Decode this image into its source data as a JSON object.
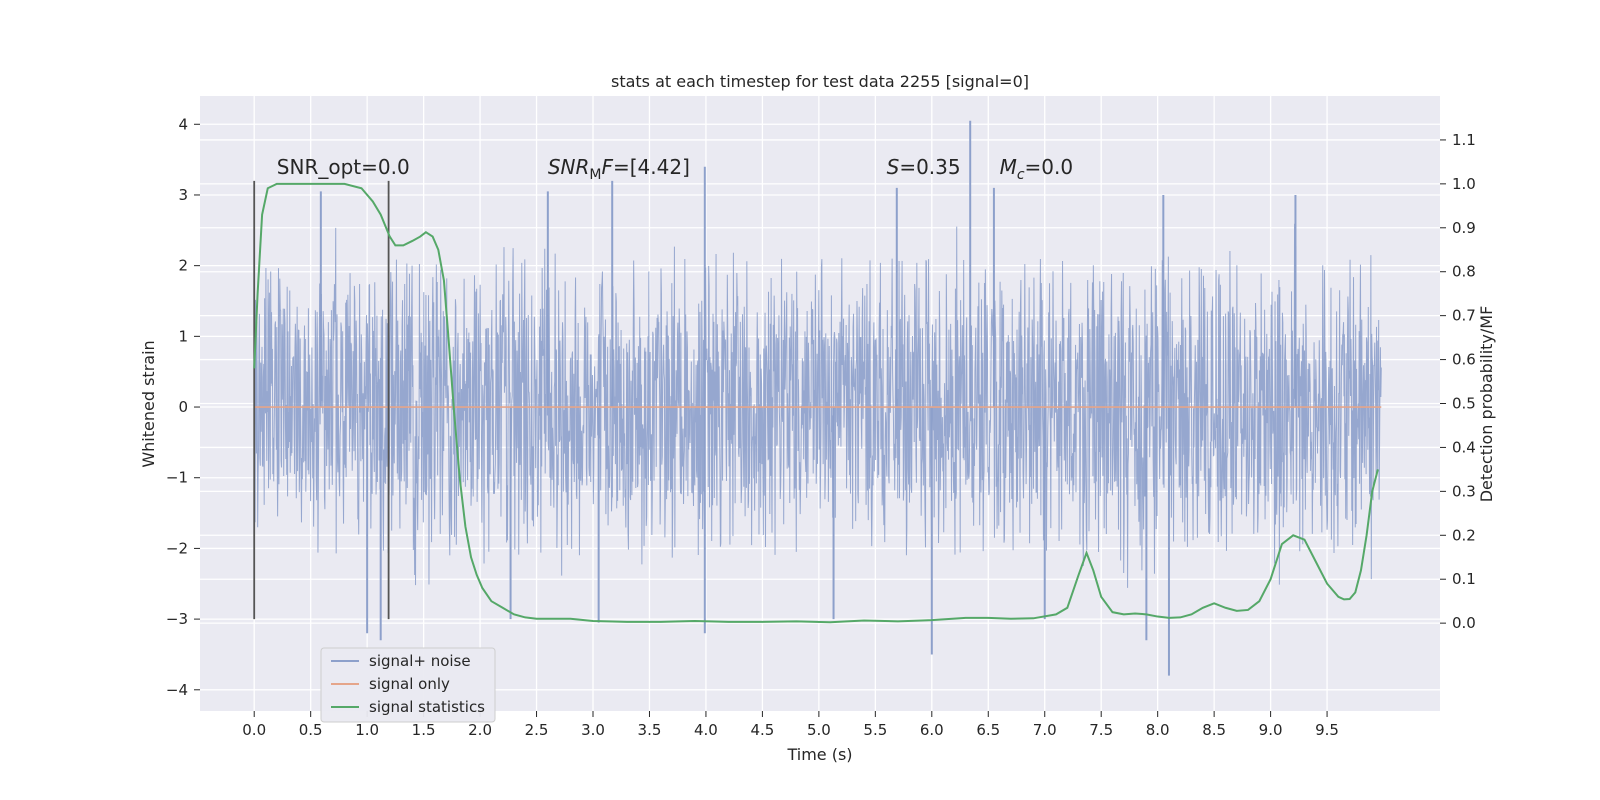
{
  "chart_data": {
    "type": "line",
    "title": "stats at each timestep for test data 2255 [signal=0]",
    "xlabel": "Time (s)",
    "ylabel_left": "Whitened strain",
    "ylabel_right": "Detection probability/MF",
    "xlim": [
      -0.48,
      10.5
    ],
    "ylim_left": [
      -4.3,
      4.4
    ],
    "ylim_right": [
      -0.2,
      1.2
    ],
    "x_ticks": [
      0.0,
      0.5,
      1.0,
      1.5,
      2.0,
      2.5,
      3.0,
      3.5,
      4.0,
      4.5,
      5.0,
      5.5,
      6.0,
      6.5,
      7.0,
      7.5,
      8.0,
      8.5,
      9.0,
      9.5
    ],
    "x_tick_labels": [
      "0.0",
      "0.5",
      "1.0",
      "1.5",
      "2.0",
      "2.5",
      "3.0",
      "3.5",
      "4.0",
      "4.5",
      "5.0",
      "5.5",
      "6.0",
      "6.5",
      "7.0",
      "7.5",
      "8.0",
      "8.5",
      "9.0",
      "9.5"
    ],
    "y_left_ticks": [
      -4,
      -3,
      -2,
      -1,
      0,
      1,
      2,
      3,
      4
    ],
    "y_left_tick_labels": [
      "−4",
      "−3",
      "−2",
      "−1",
      "0",
      "1",
      "2",
      "3",
      "4"
    ],
    "y_right_ticks": [
      0.0,
      0.1,
      0.2,
      0.3,
      0.4,
      0.5,
      0.6,
      0.7,
      0.8,
      0.9,
      1.0,
      1.1
    ],
    "y_right_tick_labels": [
      "0.0",
      "0.1",
      "0.2",
      "0.3",
      "0.4",
      "0.5",
      "0.6",
      "0.7",
      "0.8",
      "0.9",
      "1.0",
      "1.1"
    ],
    "grid": true,
    "legend_position": "lower-left",
    "series": [
      {
        "name": "signal+ noise",
        "axis": "left",
        "color": "#8da0cb",
        "x_range": [
          0.0,
          9.98
        ],
        "typical_range": [
          -1.4,
          1.4
        ],
        "extreme_range": [
          -3.8,
          4.05
        ],
        "spikes": [
          {
            "x": 1.12,
            "y": -3.3
          },
          {
            "x": 1.0,
            "y": -3.2
          },
          {
            "x": 2.27,
            "y": -3.0
          },
          {
            "x": 3.05,
            "y": -3.05
          },
          {
            "x": 3.99,
            "y": -3.2
          },
          {
            "x": 5.13,
            "y": -3.0
          },
          {
            "x": 6.0,
            "y": -3.5
          },
          {
            "x": 7.0,
            "y": -3.0
          },
          {
            "x": 7.9,
            "y": -3.3
          },
          {
            "x": 8.1,
            "y": -3.8
          },
          {
            "x": 6.34,
            "y": 4.05
          },
          {
            "x": 3.99,
            "y": 3.4
          },
          {
            "x": 2.6,
            "y": 3.05
          },
          {
            "x": 3.17,
            "y": 3.2
          },
          {
            "x": 5.69,
            "y": 3.1
          },
          {
            "x": 0.59,
            "y": 3.05
          },
          {
            "x": 6.55,
            "y": 3.1
          },
          {
            "x": 8.05,
            "y": 3.0
          },
          {
            "x": 9.22,
            "y": 3.0
          }
        ]
      },
      {
        "name": "signal only",
        "axis": "left",
        "color": "#e5a58a",
        "x": [
          0.0,
          9.98
        ],
        "y": [
          0.0,
          0.0
        ]
      },
      {
        "name": "signal statistics",
        "axis": "right",
        "color": "#55a868",
        "x": [
          0.0,
          0.03,
          0.07,
          0.12,
          0.2,
          0.3,
          0.45,
          0.6,
          0.8,
          0.95,
          1.05,
          1.12,
          1.2,
          1.25,
          1.32,
          1.4,
          1.47,
          1.52,
          1.58,
          1.63,
          1.68,
          1.72,
          1.77,
          1.82,
          1.87,
          1.92,
          1.97,
          2.02,
          2.1,
          2.2,
          2.3,
          2.4,
          2.5,
          2.6,
          2.8,
          3.0,
          3.3,
          3.6,
          3.9,
          4.2,
          4.5,
          4.8,
          5.1,
          5.4,
          5.7,
          6.0,
          6.3,
          6.5,
          6.7,
          6.9,
          7.1,
          7.2,
          7.3,
          7.37,
          7.43,
          7.5,
          7.6,
          7.7,
          7.8,
          7.9,
          8.0,
          8.1,
          8.2,
          8.3,
          8.4,
          8.5,
          8.6,
          8.7,
          8.8,
          8.9,
          9.0,
          9.1,
          9.2,
          9.3,
          9.4,
          9.5,
          9.6,
          9.65,
          9.7,
          9.75,
          9.8,
          9.85,
          9.9,
          9.95
        ],
        "y": [
          0.58,
          0.75,
          0.93,
          0.99,
          1.0,
          1.0,
          1.0,
          1.0,
          1.0,
          0.99,
          0.96,
          0.93,
          0.88,
          0.86,
          0.86,
          0.87,
          0.88,
          0.89,
          0.88,
          0.85,
          0.78,
          0.65,
          0.48,
          0.33,
          0.22,
          0.15,
          0.11,
          0.08,
          0.05,
          0.035,
          0.02,
          0.013,
          0.01,
          0.01,
          0.01,
          0.005,
          0.003,
          0.003,
          0.005,
          0.003,
          0.003,
          0.004,
          0.002,
          0.006,
          0.004,
          0.007,
          0.012,
          0.012,
          0.01,
          0.011,
          0.02,
          0.035,
          0.11,
          0.16,
          0.12,
          0.06,
          0.025,
          0.02,
          0.022,
          0.02,
          0.015,
          0.012,
          0.013,
          0.02,
          0.035,
          0.045,
          0.035,
          0.028,
          0.03,
          0.05,
          0.1,
          0.18,
          0.2,
          0.19,
          0.14,
          0.09,
          0.06,
          0.054,
          0.055,
          0.07,
          0.12,
          0.2,
          0.3,
          0.35
        ]
      }
    ],
    "vlines": [
      {
        "x": 0.0,
        "ymin": -3.0,
        "ymax": 3.2,
        "color": "#555555"
      },
      {
        "x": 1.19,
        "ymin": -3.0,
        "ymax": 3.2,
        "color": "#555555"
      }
    ],
    "annotations": [
      {
        "x": 0.2,
        "y": 3.3,
        "text": "SNR_opt=0.0",
        "kind": "plain"
      },
      {
        "x": 2.6,
        "y": 3.3,
        "italic": "SNR",
        "sub": "M",
        "rest": "F=[4.42]",
        "kind": "subscript"
      },
      {
        "x": 5.6,
        "y": 3.3,
        "italic": "S",
        "rest": "=0.35",
        "kind": "italic"
      },
      {
        "x": 6.6,
        "y": 3.3,
        "italic": "M",
        "sub": "c",
        "rest": "=0.0",
        "kind": "subscript-italic"
      }
    ]
  }
}
